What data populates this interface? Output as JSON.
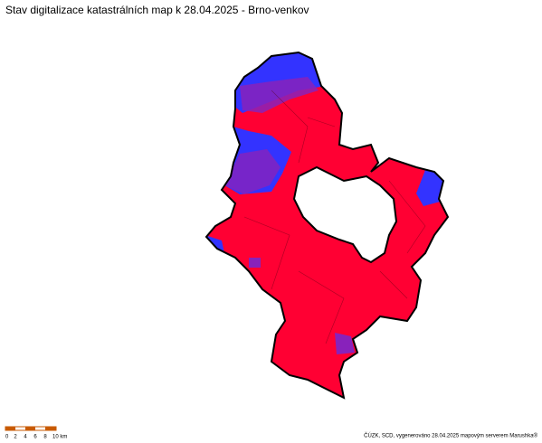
{
  "header": {
    "title": "Stav digitalizace katastrálních map k 28.04.2025 - Brno-venkov"
  },
  "scale_bar": {
    "labels": [
      "0",
      "2",
      "4",
      "6",
      "8",
      "10 km"
    ]
  },
  "footer": {
    "credit": "ČÚZK, SCD, vygenerováno 28.04.2025 mapovým serverem Marushka®"
  }
}
